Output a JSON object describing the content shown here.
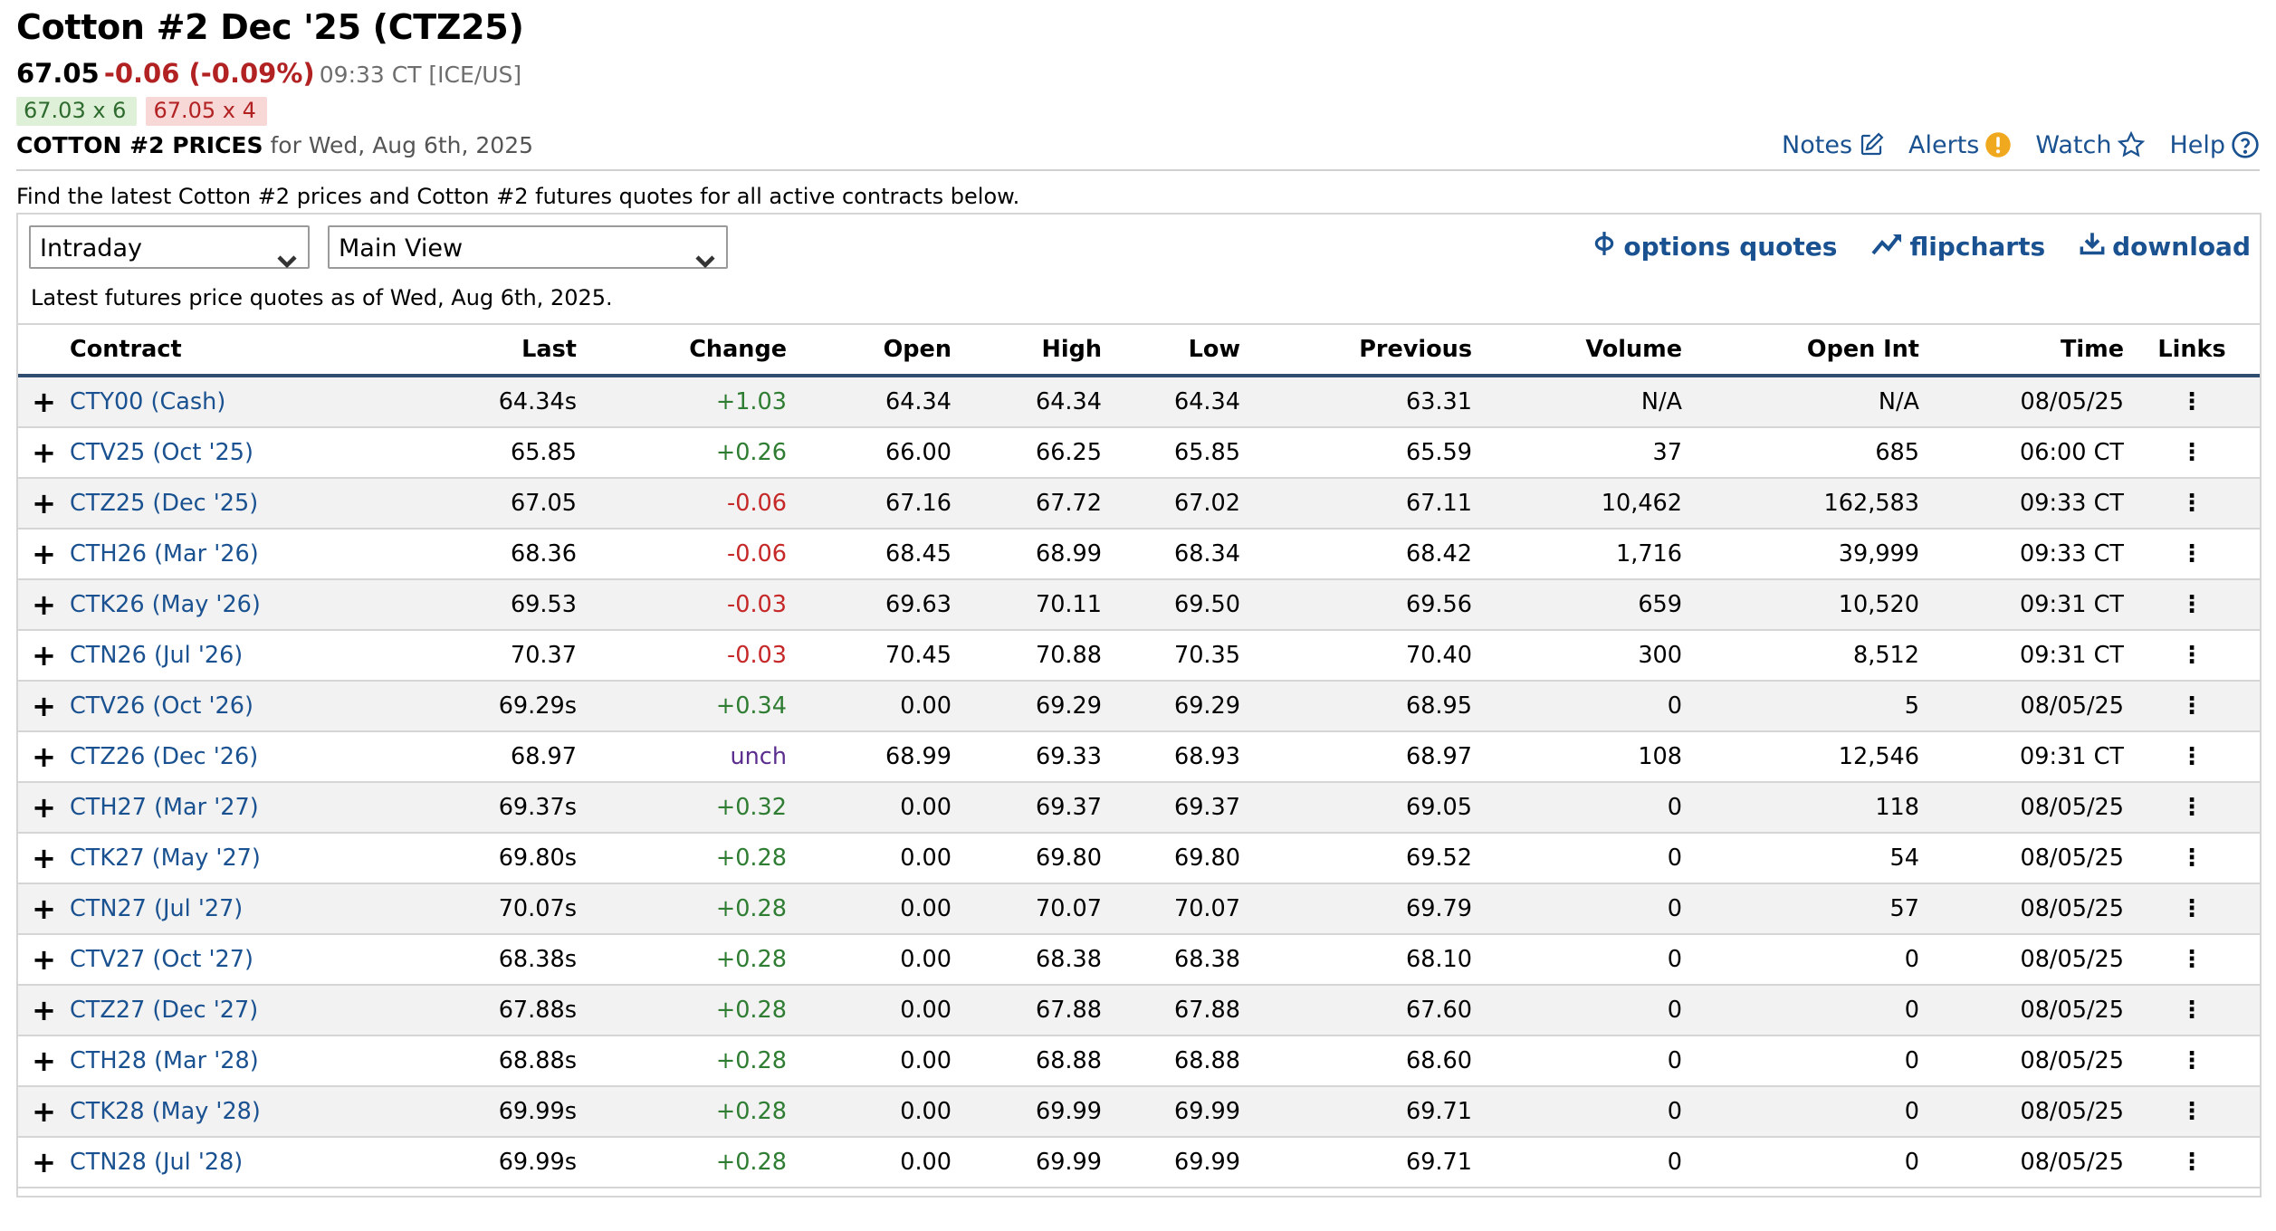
{
  "header": {
    "title": "Cotton #2 Dec '25 (CTZ25)",
    "last": "67.05",
    "change": "-0.06 (-0.09%)",
    "time_exchange": "09:33 CT [ICE/US]",
    "bid": "67.03 x 6",
    "ask": "67.05 x 4",
    "prices_label": "COTTON #2 PRICES",
    "prices_date": "for Wed, Aug 6th, 2025"
  },
  "toplinks": {
    "notes": "Notes",
    "alerts": "Alerts",
    "watch": "Watch",
    "help": "Help"
  },
  "intro": "Find the latest Cotton #2 prices and Cotton #2 futures quotes for all active contracts below.",
  "controls": {
    "period_select": "Intraday",
    "view_select": "Main View",
    "options_quotes": "options quotes",
    "flipcharts": "flipcharts",
    "download": "download"
  },
  "as_of": "Latest futures price quotes as of Wed, Aug 6th, 2025.",
  "colors": {
    "link": "#1a5190",
    "positive": "#2e7d32",
    "negative": "#c62828",
    "unchanged": "#5b2d8e",
    "header_rule": "#2f4d70"
  },
  "table": {
    "columns": [
      "Contract",
      "Last",
      "Change",
      "Open",
      "High",
      "Low",
      "Previous",
      "Volume",
      "Open Int",
      "Time",
      "Links"
    ],
    "rows": [
      {
        "contract": "CTY00 (Cash)",
        "last": "64.34s",
        "change": "+1.03",
        "dir": "pos",
        "open": "64.34",
        "high": "64.34",
        "low": "64.34",
        "previous": "63.31",
        "volume": "N/A",
        "open_int": "N/A",
        "time": "08/05/25"
      },
      {
        "contract": "CTV25 (Oct '25)",
        "last": "65.85",
        "change": "+0.26",
        "dir": "pos",
        "open": "66.00",
        "high": "66.25",
        "low": "65.85",
        "previous": "65.59",
        "volume": "37",
        "open_int": "685",
        "time": "06:00 CT"
      },
      {
        "contract": "CTZ25 (Dec '25)",
        "last": "67.05",
        "change": "-0.06",
        "dir": "neg",
        "open": "67.16",
        "high": "67.72",
        "low": "67.02",
        "previous": "67.11",
        "volume": "10,462",
        "open_int": "162,583",
        "time": "09:33 CT"
      },
      {
        "contract": "CTH26 (Mar '26)",
        "last": "68.36",
        "change": "-0.06",
        "dir": "neg",
        "open": "68.45",
        "high": "68.99",
        "low": "68.34",
        "previous": "68.42",
        "volume": "1,716",
        "open_int": "39,999",
        "time": "09:33 CT"
      },
      {
        "contract": "CTK26 (May '26)",
        "last": "69.53",
        "change": "-0.03",
        "dir": "neg",
        "open": "69.63",
        "high": "70.11",
        "low": "69.50",
        "previous": "69.56",
        "volume": "659",
        "open_int": "10,520",
        "time": "09:31 CT"
      },
      {
        "contract": "CTN26 (Jul '26)",
        "last": "70.37",
        "change": "-0.03",
        "dir": "neg",
        "open": "70.45",
        "high": "70.88",
        "low": "70.35",
        "previous": "70.40",
        "volume": "300",
        "open_int": "8,512",
        "time": "09:31 CT"
      },
      {
        "contract": "CTV26 (Oct '26)",
        "last": "69.29s",
        "change": "+0.34",
        "dir": "pos",
        "open": "0.00",
        "high": "69.29",
        "low": "69.29",
        "previous": "68.95",
        "volume": "0",
        "open_int": "5",
        "time": "08/05/25"
      },
      {
        "contract": "CTZ26 (Dec '26)",
        "last": "68.97",
        "change": "unch",
        "dir": "unch",
        "open": "68.99",
        "high": "69.33",
        "low": "68.93",
        "previous": "68.97",
        "volume": "108",
        "open_int": "12,546",
        "time": "09:31 CT"
      },
      {
        "contract": "CTH27 (Mar '27)",
        "last": "69.37s",
        "change": "+0.32",
        "dir": "pos",
        "open": "0.00",
        "high": "69.37",
        "low": "69.37",
        "previous": "69.05",
        "volume": "0",
        "open_int": "118",
        "time": "08/05/25"
      },
      {
        "contract": "CTK27 (May '27)",
        "last": "69.80s",
        "change": "+0.28",
        "dir": "pos",
        "open": "0.00",
        "high": "69.80",
        "low": "69.80",
        "previous": "69.52",
        "volume": "0",
        "open_int": "54",
        "time": "08/05/25"
      },
      {
        "contract": "CTN27 (Jul '27)",
        "last": "70.07s",
        "change": "+0.28",
        "dir": "pos",
        "open": "0.00",
        "high": "70.07",
        "low": "70.07",
        "previous": "69.79",
        "volume": "0",
        "open_int": "57",
        "time": "08/05/25"
      },
      {
        "contract": "CTV27 (Oct '27)",
        "last": "68.38s",
        "change": "+0.28",
        "dir": "pos",
        "open": "0.00",
        "high": "68.38",
        "low": "68.38",
        "previous": "68.10",
        "volume": "0",
        "open_int": "0",
        "time": "08/05/25"
      },
      {
        "contract": "CTZ27 (Dec '27)",
        "last": "67.88s",
        "change": "+0.28",
        "dir": "pos",
        "open": "0.00",
        "high": "67.88",
        "low": "67.88",
        "previous": "67.60",
        "volume": "0",
        "open_int": "0",
        "time": "08/05/25"
      },
      {
        "contract": "CTH28 (Mar '28)",
        "last": "68.88s",
        "change": "+0.28",
        "dir": "pos",
        "open": "0.00",
        "high": "68.88",
        "low": "68.88",
        "previous": "68.60",
        "volume": "0",
        "open_int": "0",
        "time": "08/05/25"
      },
      {
        "contract": "CTK28 (May '28)",
        "last": "69.99s",
        "change": "+0.28",
        "dir": "pos",
        "open": "0.00",
        "high": "69.99",
        "low": "69.99",
        "previous": "69.71",
        "volume": "0",
        "open_int": "0",
        "time": "08/05/25"
      },
      {
        "contract": "CTN28 (Jul '28)",
        "last": "69.99s",
        "change": "+0.28",
        "dir": "pos",
        "open": "0.00",
        "high": "69.99",
        "low": "69.99",
        "previous": "69.71",
        "volume": "0",
        "open_int": "0",
        "time": "08/05/25"
      }
    ]
  }
}
